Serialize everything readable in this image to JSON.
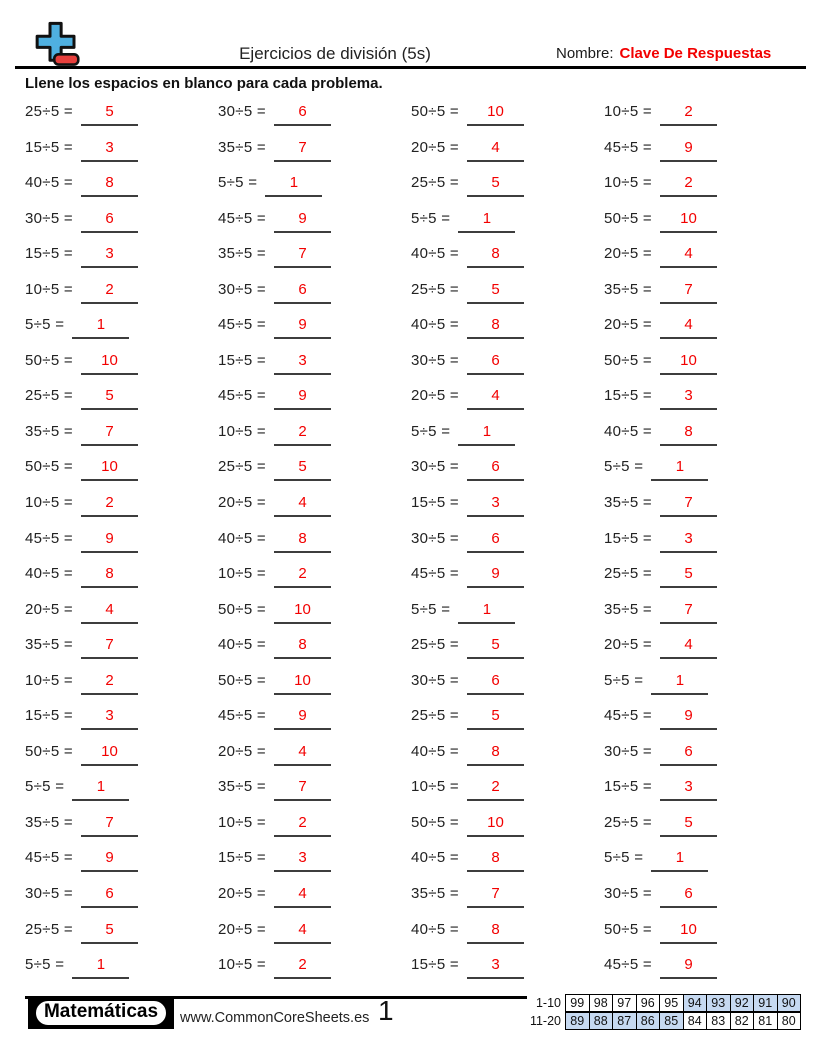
{
  "header": {
    "title": "Ejercicios de división (5s)",
    "name_label": "Nombre:",
    "name_value": "Clave De Respuestas",
    "instruction": "Llene los espacios en blanco para cada problema."
  },
  "colors": {
    "answer_red": "#f20000",
    "name_red": "#f20000",
    "logo_blue": "#4fb0e0",
    "logo_red": "#e8403d",
    "score_highlight": "#c6d9f1"
  },
  "problems": {
    "columns": [
      [
        {
          "q": "25÷5 =",
          "a": "5"
        },
        {
          "q": "15÷5 =",
          "a": "3"
        },
        {
          "q": "40÷5 =",
          "a": "8"
        },
        {
          "q": "30÷5 =",
          "a": "6"
        },
        {
          "q": "15÷5 =",
          "a": "3"
        },
        {
          "q": "10÷5 =",
          "a": "2"
        },
        {
          "q": "5÷5 =",
          "a": "1"
        },
        {
          "q": "50÷5 =",
          "a": "10"
        },
        {
          "q": "25÷5 =",
          "a": "5"
        },
        {
          "q": "35÷5 =",
          "a": "7"
        },
        {
          "q": "50÷5 =",
          "a": "10"
        },
        {
          "q": "10÷5 =",
          "a": "2"
        },
        {
          "q": "45÷5 =",
          "a": "9"
        },
        {
          "q": "40÷5 =",
          "a": "8"
        },
        {
          "q": "20÷5 =",
          "a": "4"
        },
        {
          "q": "35÷5 =",
          "a": "7"
        },
        {
          "q": "10÷5 =",
          "a": "2"
        },
        {
          "q": "15÷5 =",
          "a": "3"
        },
        {
          "q": "50÷5 =",
          "a": "10"
        },
        {
          "q": "5÷5 =",
          "a": "1"
        },
        {
          "q": "35÷5 =",
          "a": "7"
        },
        {
          "q": "45÷5 =",
          "a": "9"
        },
        {
          "q": "30÷5 =",
          "a": "6"
        },
        {
          "q": "25÷5 =",
          "a": "5"
        },
        {
          "q": "5÷5 =",
          "a": "1"
        }
      ],
      [
        {
          "q": "30÷5 =",
          "a": "6"
        },
        {
          "q": "35÷5 =",
          "a": "7"
        },
        {
          "q": "5÷5 =",
          "a": "1"
        },
        {
          "q": "45÷5 =",
          "a": "9"
        },
        {
          "q": "35÷5 =",
          "a": "7"
        },
        {
          "q": "30÷5 =",
          "a": "6"
        },
        {
          "q": "45÷5 =",
          "a": "9"
        },
        {
          "q": "15÷5 =",
          "a": "3"
        },
        {
          "q": "45÷5 =",
          "a": "9"
        },
        {
          "q": "10÷5 =",
          "a": "2"
        },
        {
          "q": "25÷5 =",
          "a": "5"
        },
        {
          "q": "20÷5 =",
          "a": "4"
        },
        {
          "q": "40÷5 =",
          "a": "8"
        },
        {
          "q": "10÷5 =",
          "a": "2"
        },
        {
          "q": "50÷5 =",
          "a": "10"
        },
        {
          "q": "40÷5 =",
          "a": "8"
        },
        {
          "q": "50÷5 =",
          "a": "10"
        },
        {
          "q": "45÷5 =",
          "a": "9"
        },
        {
          "q": "20÷5 =",
          "a": "4"
        },
        {
          "q": "35÷5 =",
          "a": "7"
        },
        {
          "q": "10÷5 =",
          "a": "2"
        },
        {
          "q": "15÷5 =",
          "a": "3"
        },
        {
          "q": "20÷5 =",
          "a": "4"
        },
        {
          "q": "20÷5 =",
          "a": "4"
        },
        {
          "q": "10÷5 =",
          "a": "2"
        }
      ],
      [
        {
          "q": "50÷5 =",
          "a": "10"
        },
        {
          "q": "20÷5 =",
          "a": "4"
        },
        {
          "q": "25÷5 =",
          "a": "5"
        },
        {
          "q": "5÷5 =",
          "a": "1"
        },
        {
          "q": "40÷5 =",
          "a": "8"
        },
        {
          "q": "25÷5 =",
          "a": "5"
        },
        {
          "q": "40÷5 =",
          "a": "8"
        },
        {
          "q": "30÷5 =",
          "a": "6"
        },
        {
          "q": "20÷5 =",
          "a": "4"
        },
        {
          "q": "5÷5 =",
          "a": "1"
        },
        {
          "q": "30÷5 =",
          "a": "6"
        },
        {
          "q": "15÷5 =",
          "a": "3"
        },
        {
          "q": "30÷5 =",
          "a": "6"
        },
        {
          "q": "45÷5 =",
          "a": "9"
        },
        {
          "q": "5÷5 =",
          "a": "1"
        },
        {
          "q": "25÷5 =",
          "a": "5"
        },
        {
          "q": "30÷5 =",
          "a": "6"
        },
        {
          "q": "25÷5 =",
          "a": "5"
        },
        {
          "q": "40÷5 =",
          "a": "8"
        },
        {
          "q": "10÷5 =",
          "a": "2"
        },
        {
          "q": "50÷5 =",
          "a": "10"
        },
        {
          "q": "40÷5 =",
          "a": "8"
        },
        {
          "q": "35÷5 =",
          "a": "7"
        },
        {
          "q": "40÷5 =",
          "a": "8"
        },
        {
          "q": "15÷5 =",
          "a": "3"
        }
      ],
      [
        {
          "q": "10÷5 =",
          "a": "2"
        },
        {
          "q": "45÷5 =",
          "a": "9"
        },
        {
          "q": "10÷5 =",
          "a": "2"
        },
        {
          "q": "50÷5 =",
          "a": "10"
        },
        {
          "q": "20÷5 =",
          "a": "4"
        },
        {
          "q": "35÷5 =",
          "a": "7"
        },
        {
          "q": "20÷5 =",
          "a": "4"
        },
        {
          "q": "50÷5 =",
          "a": "10"
        },
        {
          "q": "15÷5 =",
          "a": "3"
        },
        {
          "q": "40÷5 =",
          "a": "8"
        },
        {
          "q": "5÷5 =",
          "a": "1"
        },
        {
          "q": "35÷5 =",
          "a": "7"
        },
        {
          "q": "15÷5 =",
          "a": "3"
        },
        {
          "q": "25÷5 =",
          "a": "5"
        },
        {
          "q": "35÷5 =",
          "a": "7"
        },
        {
          "q": "20÷5 =",
          "a": "4"
        },
        {
          "q": "5÷5 =",
          "a": "1"
        },
        {
          "q": "45÷5 =",
          "a": "9"
        },
        {
          "q": "30÷5 =",
          "a": "6"
        },
        {
          "q": "15÷5 =",
          "a": "3"
        },
        {
          "q": "25÷5 =",
          "a": "5"
        },
        {
          "q": "5÷5 =",
          "a": "1"
        },
        {
          "q": "30÷5 =",
          "a": "6"
        },
        {
          "q": "50÷5 =",
          "a": "10"
        },
        {
          "q": "45÷5 =",
          "a": "9"
        }
      ]
    ]
  },
  "footer": {
    "brand": "Matemáticas",
    "website": "www.CommonCoreSheets.es",
    "page_number": "1",
    "score_table": {
      "rows": [
        {
          "label": "1-10",
          "cells": [
            {
              "v": "99",
              "hl": false
            },
            {
              "v": "98",
              "hl": false
            },
            {
              "v": "97",
              "hl": false
            },
            {
              "v": "96",
              "hl": false
            },
            {
              "v": "95",
              "hl": false
            },
            {
              "v": "94",
              "hl": true
            },
            {
              "v": "93",
              "hl": true
            },
            {
              "v": "92",
              "hl": true
            },
            {
              "v": "91",
              "hl": true
            },
            {
              "v": "90",
              "hl": true
            }
          ]
        },
        {
          "label": "11-20",
          "cells": [
            {
              "v": "89",
              "hl": true
            },
            {
              "v": "88",
              "hl": true
            },
            {
              "v": "87",
              "hl": true
            },
            {
              "v": "86",
              "hl": true
            },
            {
              "v": "85",
              "hl": true
            },
            {
              "v": "84",
              "hl": false
            },
            {
              "v": "83",
              "hl": false
            },
            {
              "v": "82",
              "hl": false
            },
            {
              "v": "81",
              "hl": false
            },
            {
              "v": "80",
              "hl": false
            }
          ]
        }
      ]
    }
  }
}
